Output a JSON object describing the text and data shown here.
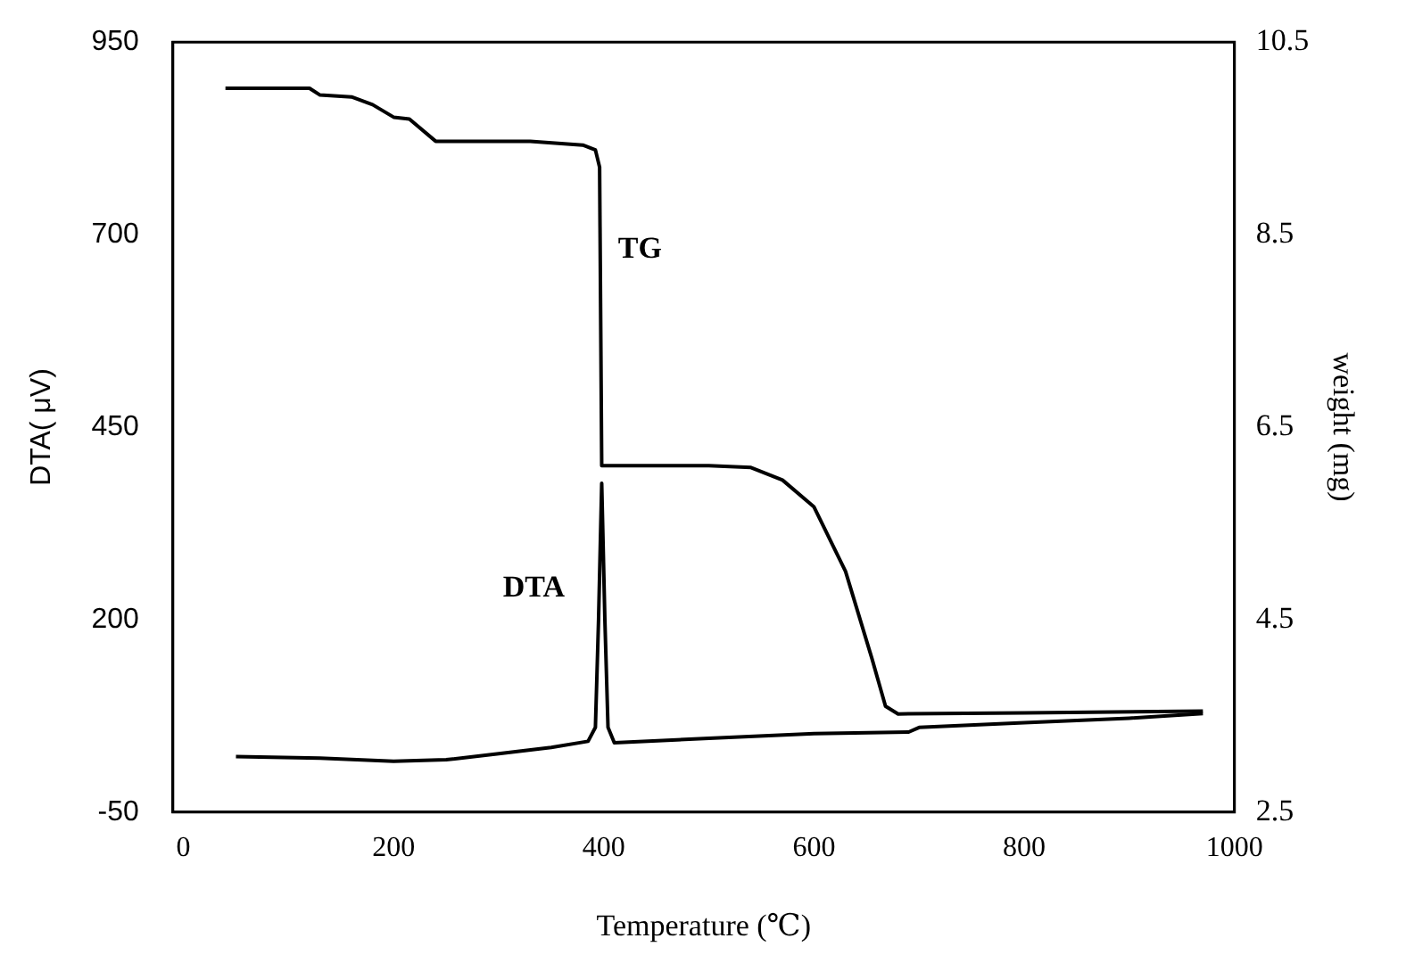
{
  "chart_data": {
    "type": "line",
    "xlabel": "Temperature (℃)",
    "ylabel": "DTA( μV)",
    "y2label": "weight (mg)",
    "xlim": [
      -10,
      1000
    ],
    "xticks": [
      0,
      200,
      400,
      600,
      800,
      1000
    ],
    "ylim": [
      -50,
      950
    ],
    "yticks": [
      -50,
      200,
      450,
      700,
      950
    ],
    "y2lim": [
      2.5,
      10.5
    ],
    "y2ticks": [
      2.5,
      4.5,
      6.5,
      8.5,
      10.5
    ],
    "grid": false,
    "legend": false,
    "marker": "none",
    "line_style": "solid",
    "series": [
      {
        "color": "#000000",
        "axis": "y2",
        "x": [
          40,
          120,
          130,
          160,
          180,
          200,
          215,
          240,
          330,
          380,
          392,
          396,
          398,
          500,
          540,
          570,
          600,
          630,
          655,
          668,
          680,
          800,
          970
        ],
        "values": [
          10.02,
          10.02,
          9.95,
          9.93,
          9.85,
          9.72,
          9.7,
          9.47,
          9.47,
          9.43,
          9.38,
          9.2,
          6.1,
          6.1,
          6.08,
          5.95,
          5.67,
          5.0,
          4.1,
          3.6,
          3.52,
          3.53,
          3.55
        ]
      },
      {
        "color": "#000000",
        "axis": "y",
        "x": [
          50,
          130,
          200,
          250,
          300,
          350,
          385,
          392,
          395,
          398,
          401,
          404,
          410,
          500,
          600,
          690,
          700,
          800,
          900,
          970
        ],
        "values": [
          22,
          20,
          16,
          18,
          26,
          34,
          42,
          60,
          200,
          377,
          200,
          60,
          40,
          46,
          52,
          54,
          60,
          66,
          72,
          78
        ]
      }
    ],
    "annotations": [
      "TG",
      "DTA"
    ]
  }
}
